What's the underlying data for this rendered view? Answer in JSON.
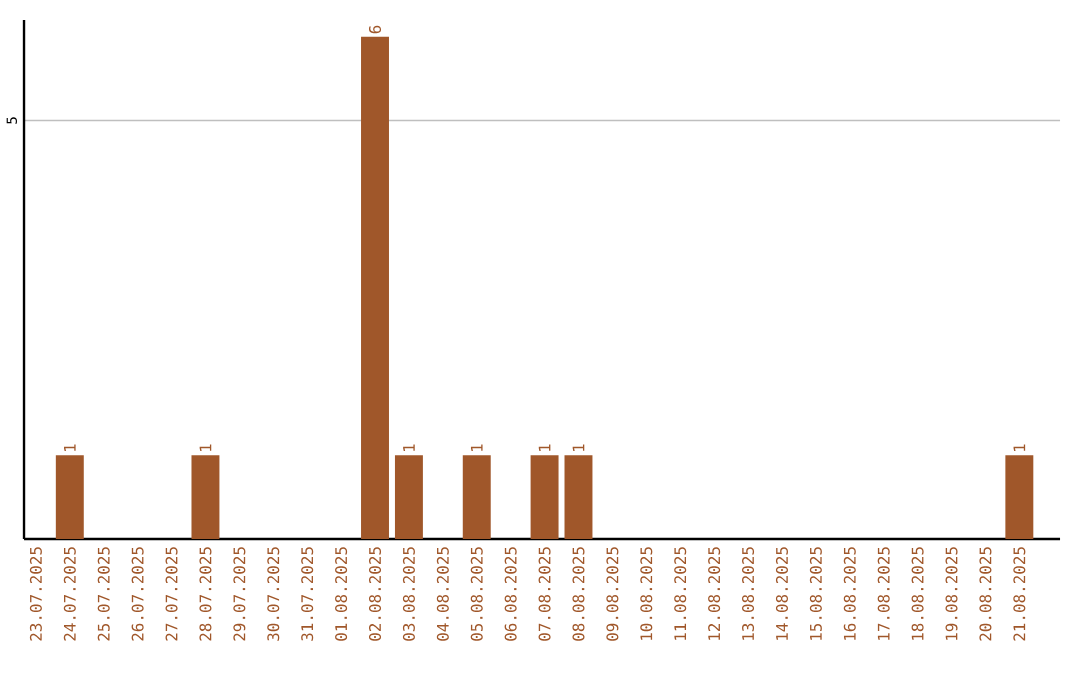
{
  "chart_data": {
    "type": "bar",
    "categories": [
      "23.07.2025",
      "24.07.2025",
      "25.07.2025",
      "26.07.2025",
      "27.07.2025",
      "28.07.2025",
      "29.07.2025",
      "30.07.2025",
      "31.07.2025",
      "01.08.2025",
      "02.08.2025",
      "03.08.2025",
      "04.08.2025",
      "05.08.2025",
      "06.08.2025",
      "07.08.2025",
      "08.08.2025",
      "09.08.2025",
      "10.08.2025",
      "11.08.2025",
      "12.08.2025",
      "13.08.2025",
      "14.08.2025",
      "15.08.2025",
      "16.08.2025",
      "17.08.2025",
      "18.08.2025",
      "19.08.2025",
      "20.08.2025",
      "21.08.2025"
    ],
    "values": [
      0,
      1,
      0,
      0,
      0,
      1,
      0,
      0,
      0,
      0,
      6,
      1,
      0,
      1,
      0,
      1,
      1,
      0,
      0,
      0,
      0,
      0,
      0,
      0,
      0,
      0,
      0,
      0,
      0,
      1
    ],
    "value_labels": [
      null,
      "1",
      null,
      null,
      null,
      "1",
      null,
      null,
      null,
      null,
      "6",
      "1",
      null,
      "1",
      null,
      "1",
      "1",
      null,
      null,
      null,
      null,
      null,
      null,
      null,
      null,
      null,
      null,
      null,
      null,
      "1"
    ],
    "color": "#a0572a",
    "ylim": [
      0,
      6.2
    ],
    "yticks": [
      5
    ],
    "grid": "y"
  }
}
